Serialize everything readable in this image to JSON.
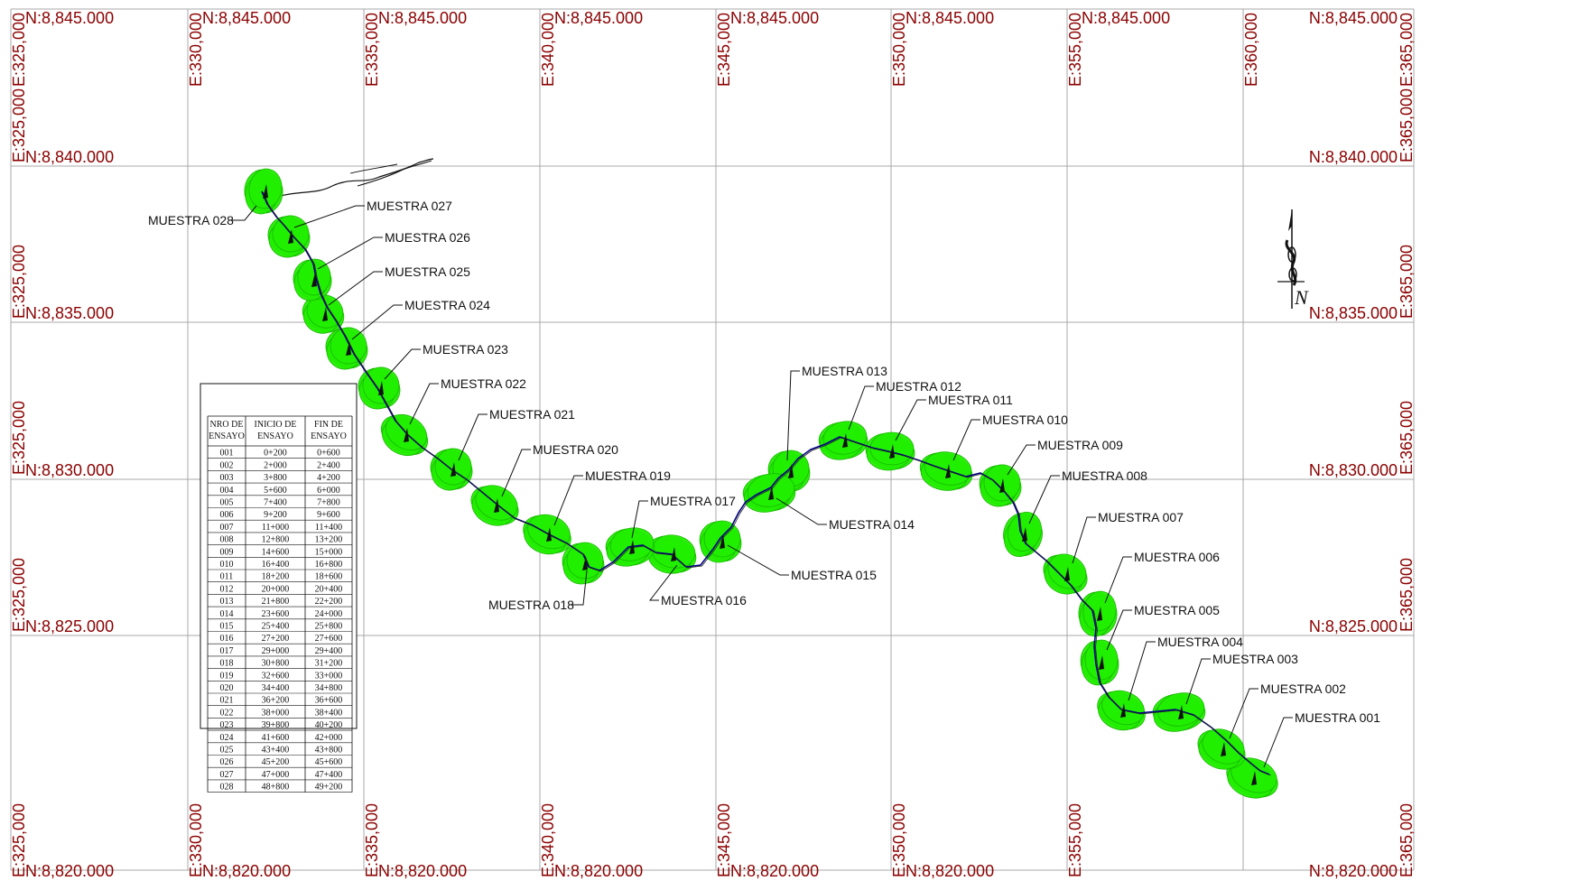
{
  "grid": {
    "easting_labels": [
      "E:325,000",
      "E:330,000",
      "E:335,000",
      "E:340,000",
      "E:345,000",
      "E:350,000",
      "E:355,000",
      "E:360,000",
      "E:365,000"
    ],
    "northing_labels": [
      "N:8,845.000",
      "N:8,840.000",
      "N:8,835.000",
      "N:8,830.000",
      "N:8,825.000",
      "N:8,820.000"
    ]
  },
  "samples": [
    {
      "id": "001",
      "label": "MUESTRA 001"
    },
    {
      "id": "002",
      "label": "MUESTRA 002"
    },
    {
      "id": "003",
      "label": "MUESTRA 003"
    },
    {
      "id": "004",
      "label": "MUESTRA 004"
    },
    {
      "id": "005",
      "label": "MUESTRA 005"
    },
    {
      "id": "006",
      "label": "MUESTRA 006"
    },
    {
      "id": "007",
      "label": "MUESTRA 007"
    },
    {
      "id": "008",
      "label": "MUESTRA 008"
    },
    {
      "id": "009",
      "label": "MUESTRA 009"
    },
    {
      "id": "010",
      "label": "MUESTRA 010"
    },
    {
      "id": "011",
      "label": "MUESTRA 011"
    },
    {
      "id": "012",
      "label": "MUESTRA 012"
    },
    {
      "id": "013",
      "label": "MUESTRA 013"
    },
    {
      "id": "014",
      "label": "MUESTRA 014"
    },
    {
      "id": "015",
      "label": "MUESTRA 015"
    },
    {
      "id": "016",
      "label": "MUESTRA 016"
    },
    {
      "id": "017",
      "label": "MUESTRA 017"
    },
    {
      "id": "018",
      "label": "MUESTRA 018"
    },
    {
      "id": "019",
      "label": "MUESTRA 019"
    },
    {
      "id": "020",
      "label": "MUESTRA 020"
    },
    {
      "id": "021",
      "label": "MUESTRA 021"
    },
    {
      "id": "022",
      "label": "MUESTRA 022"
    },
    {
      "id": "023",
      "label": "MUESTRA 023"
    },
    {
      "id": "024",
      "label": "MUESTRA 024"
    },
    {
      "id": "025",
      "label": "MUESTRA 025"
    },
    {
      "id": "026",
      "label": "MUESTRA 026"
    },
    {
      "id": "027",
      "label": "MUESTRA 027"
    },
    {
      "id": "028",
      "label": "MUESTRA 028"
    }
  ],
  "table": {
    "headers": [
      [
        "NRO DE",
        "ENSAYO"
      ],
      [
        "INICIO DE",
        "ENSAYO"
      ],
      [
        "FIN DE",
        "ENSAYO"
      ]
    ],
    "rows": [
      [
        "001",
        "0+200",
        "0+600"
      ],
      [
        "002",
        "2+000",
        "2+400"
      ],
      [
        "003",
        "3+800",
        "4+200"
      ],
      [
        "004",
        "5+600",
        "6+000"
      ],
      [
        "005",
        "7+400",
        "7+800"
      ],
      [
        "006",
        "9+200",
        "9+600"
      ],
      [
        "007",
        "11+000",
        "11+400"
      ],
      [
        "008",
        "12+800",
        "13+200"
      ],
      [
        "009",
        "14+600",
        "15+000"
      ],
      [
        "010",
        "16+400",
        "16+800"
      ],
      [
        "011",
        "18+200",
        "18+600"
      ],
      [
        "012",
        "20+000",
        "20+400"
      ],
      [
        "013",
        "21+800",
        "22+200"
      ],
      [
        "014",
        "23+600",
        "24+000"
      ],
      [
        "015",
        "25+400",
        "25+800"
      ],
      [
        "016",
        "27+200",
        "27+600"
      ],
      [
        "017",
        "29+000",
        "29+400"
      ],
      [
        "018",
        "30+800",
        "31+200"
      ],
      [
        "019",
        "32+600",
        "33+000"
      ],
      [
        "020",
        "34+400",
        "34+800"
      ],
      [
        "021",
        "36+200",
        "36+600"
      ],
      [
        "022",
        "38+000",
        "38+400"
      ],
      [
        "023",
        "39+800",
        "40+200"
      ],
      [
        "024",
        "41+600",
        "42+000"
      ],
      [
        "025",
        "43+400",
        "43+800"
      ],
      [
        "026",
        "45+200",
        "45+600"
      ],
      [
        "027",
        "47+000",
        "47+400"
      ],
      [
        "028",
        "48+800",
        "49+200"
      ]
    ]
  },
  "north_arrow": {
    "letter": "N"
  },
  "colors": {
    "grid": "#a8a8a8",
    "coord_text": "#8b0000",
    "buffer": "#22ee00",
    "route": "#000080",
    "line": "#111111"
  }
}
